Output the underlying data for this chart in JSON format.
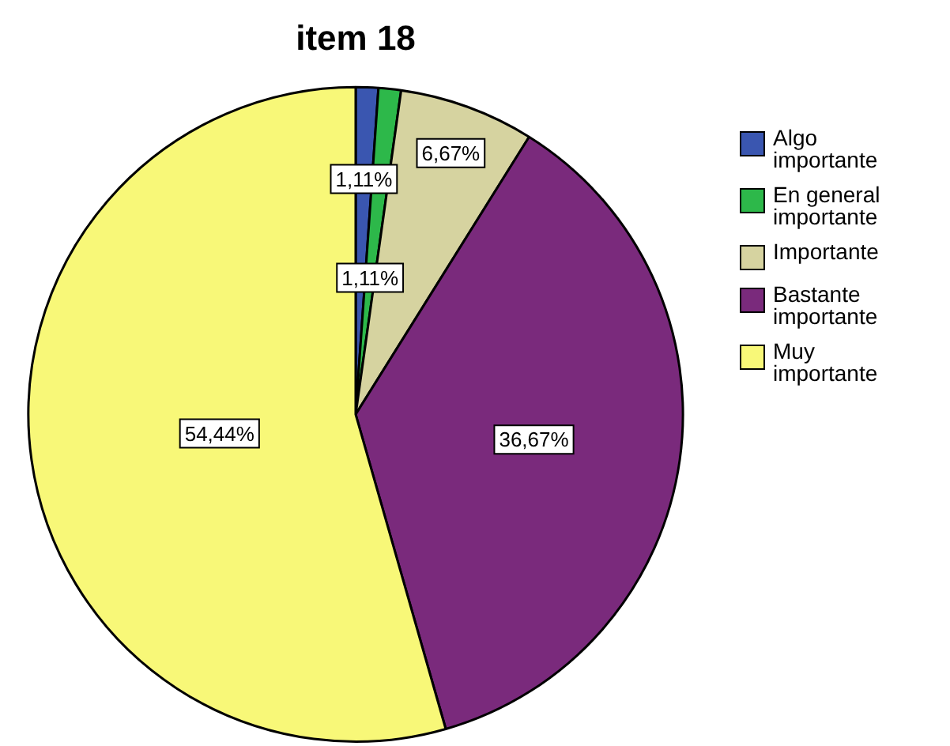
{
  "chart_data": {
    "type": "pie",
    "title": "item 18",
    "categories": [
      "Algo importante",
      "En general importante",
      "Importante",
      "Bastante importante",
      "Muy importante"
    ],
    "values": [
      1.11,
      1.11,
      6.67,
      36.67,
      54.44
    ],
    "colors": [
      "#3a56b0",
      "#2db84a",
      "#d6d3a0",
      "#7a2a7c",
      "#f8f878"
    ],
    "value_labels": [
      "1,11%",
      "1,11%",
      "6,67%",
      "36,67%",
      "54,44%"
    ],
    "legend": "top right"
  }
}
